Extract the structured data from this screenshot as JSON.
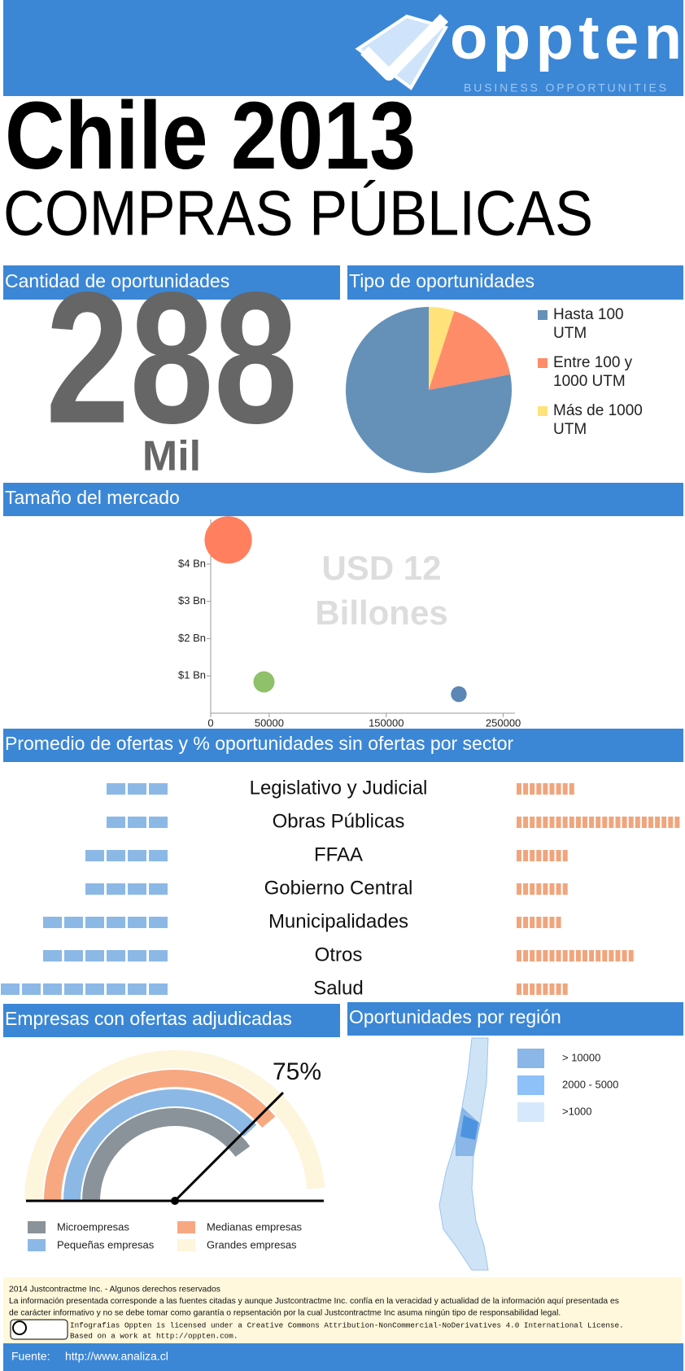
{
  "header": {
    "brand": "oppten",
    "tagline": "BUSINESS OPPORTUNITIES"
  },
  "title": "Chile 2013",
  "subtitle": "COMPRAS PÚBLICAS",
  "opportunities": {
    "heading": "Cantidad de oportunidades",
    "value": "288",
    "unit": "Mil"
  },
  "chart_data": [
    {
      "type": "pie",
      "title": "Tipo de oportunidades",
      "categories": [
        "Hasta 100 UTM",
        "Entre 100 y 1000 UTM",
        "Más de 1000 UTM"
      ],
      "values": [
        78,
        17,
        5
      ],
      "colors": [
        "#6591b8",
        "#ff8c69",
        "#ffe37a"
      ]
    },
    {
      "type": "scatter",
      "title": "Tamaño del mercado",
      "annotation": [
        "USD 12",
        "Billones"
      ],
      "x": [
        15000,
        45500,
        212000
      ],
      "values": [
        4.65,
        0.84,
        0.51
      ],
      "sizes": [
        9,
        1.8,
        1
      ],
      "colors": [
        "#ff7f5e",
        "#8fc06a",
        "#5b86b5"
      ],
      "xlim": [
        0,
        260000
      ],
      "xticks": [
        0,
        50000,
        150000,
        250000
      ],
      "ylim": [
        0,
        5.2
      ],
      "yticks": [
        {
          "value": 1,
          "label": "$1 Bn"
        },
        {
          "value": 2,
          "label": "$2 Bn"
        },
        {
          "value": 3,
          "label": "$3 Bn"
        },
        {
          "value": 4,
          "label": "$4 Bn"
        }
      ]
    },
    {
      "type": "icon-bar",
      "title": "Promedio de ofertas y % oportunidades sin ofertas por sector",
      "categories": [
        "Legislativo y Judicial",
        "Obras Públicas",
        "FFAA",
        "Gobierno Central",
        "Municipalidades",
        "Otros",
        "Salud"
      ],
      "series": [
        {
          "color": "#8cb8e6",
          "values": [
            3,
            3,
            4,
            4,
            6,
            6,
            8
          ]
        },
        {
          "color": "#f0a57d",
          "values": [
            9,
            25,
            8,
            8,
            7,
            18,
            8
          ]
        }
      ]
    },
    {
      "type": "gauge",
      "title": "Empresas con ofertas adjudicadas",
      "value": 75,
      "value_label": "75%",
      "ylim": [
        0,
        100
      ],
      "categories": [
        "Microempresas",
        "Medianas empresas",
        "Pequeñas empresas",
        "Grandes empresas"
      ],
      "colors": [
        "#8a9399",
        "#f7a880",
        "#8cb8e6",
        "#fdf5dc"
      ]
    }
  ],
  "region": {
    "heading": "Oportunidades por región",
    "legend": [
      "> 10000",
      "2000 - 5000",
      ">1000"
    ],
    "colors": [
      "#8ab6e8",
      "#8ec1f7",
      "#d6e8fb"
    ]
  },
  "footer": {
    "lines": [
      "2014 Justcontractme Inc. - Algunos derechos reservados",
      "La información presentada corresponde a las fuentes citadas y aunque Justcontractme Inc. confía en la veracidad y actualidad de la información aquí presentada es",
      "de carácter informativo y no se debe tomar como garantía o repsentación por la cual Justcontractme Inc asuma ningún tipo de responsabilidad legal."
    ],
    "license": [
      "Infografias Oppten is licensed under a Creative Commons Attribution-NonCommercial-NoDerivatives 4.0 International License.",
      "Based on a work at http://oppten.com."
    ],
    "source_label": "Fuente:",
    "source": "http://www.analiza.cl"
  }
}
